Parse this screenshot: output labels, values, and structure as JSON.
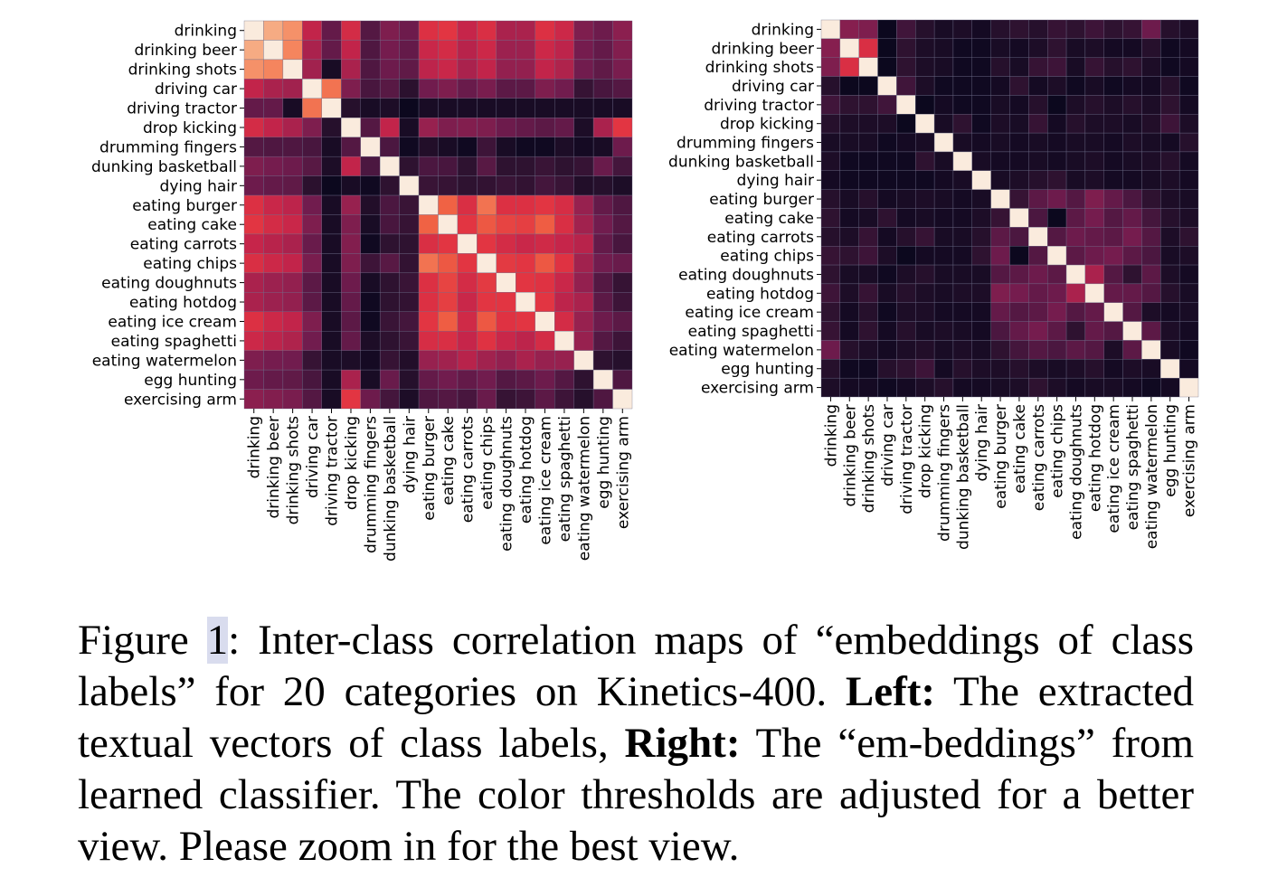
{
  "chart_data": [
    {
      "type": "heatmap",
      "panel": "Left",
      "labels": [
        "drinking",
        "drinking beer",
        "drinking shots",
        "driving car",
        "driving tractor",
        "drop kicking",
        "drumming fingers",
        "dunking basketball",
        "dying hair",
        "eating burger",
        "eating cake",
        "eating carrots",
        "eating chips",
        "eating doughnuts",
        "eating hotdog",
        "eating ice cream",
        "eating spaghetti",
        "eating watermelon",
        "egg hunting",
        "exercising arm"
      ],
      "colormap": [
        "#03051a",
        "#2b112e",
        "#4c1740",
        "#721c4e",
        "#99214f",
        "#c4244a",
        "#e13342",
        "#f06043",
        "#f58860",
        "#f6aa82",
        "#f8c7a8",
        "#faebdd"
      ],
      "grid": true,
      "legend": "none",
      "values": [
        [
          1.0,
          0.82,
          0.75,
          0.45,
          0.24,
          0.5,
          0.2,
          0.3,
          0.26,
          0.53,
          0.55,
          0.46,
          0.52,
          0.4,
          0.4,
          0.53,
          0.48,
          0.3,
          0.26,
          0.33
        ],
        [
          0.82,
          1.0,
          0.72,
          0.4,
          0.24,
          0.45,
          0.19,
          0.28,
          0.24,
          0.47,
          0.5,
          0.43,
          0.48,
          0.37,
          0.37,
          0.48,
          0.44,
          0.28,
          0.24,
          0.31
        ],
        [
          0.75,
          0.72,
          1.0,
          0.38,
          0.05,
          0.4,
          0.19,
          0.26,
          0.23,
          0.44,
          0.47,
          0.4,
          0.45,
          0.35,
          0.35,
          0.45,
          0.41,
          0.27,
          0.23,
          0.29
        ],
        [
          0.45,
          0.4,
          0.38,
          1.0,
          0.68,
          0.3,
          0.17,
          0.21,
          0.09,
          0.27,
          0.3,
          0.25,
          0.29,
          0.22,
          0.22,
          0.3,
          0.27,
          0.12,
          0.17,
          0.2
        ],
        [
          0.24,
          0.24,
          0.05,
          0.68,
          1.0,
          0.08,
          0.05,
          0.06,
          0.02,
          0.05,
          0.05,
          0.05,
          0.05,
          0.05,
          0.05,
          0.05,
          0.05,
          0.05,
          0.05,
          0.05
        ],
        [
          0.5,
          0.45,
          0.4,
          0.3,
          0.08,
          1.0,
          0.2,
          0.45,
          0.05,
          0.36,
          0.3,
          0.31,
          0.3,
          0.26,
          0.24,
          0.22,
          0.24,
          0.06,
          0.4,
          0.55
        ],
        [
          0.2,
          0.19,
          0.19,
          0.17,
          0.05,
          0.2,
          1.0,
          0.18,
          0.03,
          0.07,
          0.05,
          0.03,
          0.14,
          0.05,
          0.03,
          0.03,
          0.06,
          0.04,
          0.05,
          0.26
        ],
        [
          0.3,
          0.28,
          0.26,
          0.21,
          0.06,
          0.45,
          0.18,
          1.0,
          0.1,
          0.18,
          0.17,
          0.1,
          0.21,
          0.1,
          0.1,
          0.13,
          0.1,
          0.12,
          0.25,
          0.16
        ],
        [
          0.26,
          0.24,
          0.23,
          0.09,
          0.02,
          0.05,
          0.03,
          0.1,
          1.0,
          0.13,
          0.12,
          0.1,
          0.11,
          0.13,
          0.11,
          0.16,
          0.13,
          0.07,
          0.08,
          0.06
        ],
        [
          0.53,
          0.47,
          0.44,
          0.27,
          0.05,
          0.36,
          0.07,
          0.18,
          0.13,
          1.0,
          0.64,
          0.52,
          0.68,
          0.53,
          0.53,
          0.55,
          0.51,
          0.36,
          0.24,
          0.19
        ],
        [
          0.55,
          0.5,
          0.47,
          0.3,
          0.05,
          0.3,
          0.05,
          0.17,
          0.12,
          0.64,
          1.0,
          0.55,
          0.62,
          0.58,
          0.57,
          0.63,
          0.52,
          0.38,
          0.27,
          0.2
        ],
        [
          0.46,
          0.43,
          0.4,
          0.25,
          0.05,
          0.31,
          0.03,
          0.1,
          0.1,
          0.52,
          0.55,
          1.0,
          0.55,
          0.5,
          0.47,
          0.49,
          0.46,
          0.43,
          0.24,
          0.17
        ],
        [
          0.52,
          0.48,
          0.45,
          0.29,
          0.05,
          0.3,
          0.14,
          0.21,
          0.11,
          0.68,
          0.62,
          0.55,
          1.0,
          0.56,
          0.55,
          0.62,
          0.54,
          0.38,
          0.27,
          0.25
        ],
        [
          0.4,
          0.37,
          0.35,
          0.22,
          0.05,
          0.26,
          0.05,
          0.1,
          0.13,
          0.53,
          0.58,
          0.5,
          0.56,
          1.0,
          0.55,
          0.54,
          0.47,
          0.35,
          0.2,
          0.12
        ],
        [
          0.4,
          0.37,
          0.35,
          0.22,
          0.05,
          0.24,
          0.03,
          0.1,
          0.11,
          0.53,
          0.57,
          0.47,
          0.55,
          0.55,
          1.0,
          0.55,
          0.44,
          0.4,
          0.22,
          0.14
        ],
        [
          0.53,
          0.48,
          0.45,
          0.3,
          0.05,
          0.22,
          0.03,
          0.13,
          0.16,
          0.55,
          0.63,
          0.49,
          0.62,
          0.54,
          0.55,
          1.0,
          0.5,
          0.36,
          0.26,
          0.22
        ],
        [
          0.48,
          0.44,
          0.41,
          0.27,
          0.05,
          0.24,
          0.06,
          0.1,
          0.13,
          0.51,
          0.52,
          0.46,
          0.54,
          0.47,
          0.44,
          0.5,
          1.0,
          0.36,
          0.2,
          0.14
        ],
        [
          0.3,
          0.28,
          0.27,
          0.12,
          0.05,
          0.06,
          0.04,
          0.12,
          0.07,
          0.36,
          0.38,
          0.43,
          0.38,
          0.35,
          0.4,
          0.36,
          0.36,
          1.0,
          0.1,
          0.08
        ],
        [
          0.26,
          0.24,
          0.23,
          0.17,
          0.05,
          0.4,
          0.05,
          0.25,
          0.08,
          0.24,
          0.27,
          0.24,
          0.27,
          0.2,
          0.22,
          0.26,
          0.2,
          0.1,
          1.0,
          0.19
        ],
        [
          0.33,
          0.31,
          0.29,
          0.2,
          0.05,
          0.55,
          0.26,
          0.16,
          0.06,
          0.19,
          0.2,
          0.17,
          0.25,
          0.12,
          0.14,
          0.22,
          0.14,
          0.08,
          0.19,
          1.0
        ]
      ]
    },
    {
      "type": "heatmap",
      "panel": "Right",
      "labels": [
        "drinking",
        "drinking beer",
        "drinking shots",
        "driving car",
        "driving tractor",
        "drop kicking",
        "drumming fingers",
        "dunking basketball",
        "dying hair",
        "eating burger",
        "eating cake",
        "eating carrots",
        "eating chips",
        "eating doughnuts",
        "eating hotdog",
        "eating ice cream",
        "eating spaghetti",
        "eating watermelon",
        "egg hunting",
        "exercising arm"
      ],
      "colormap": [
        "#03051a",
        "#2b112e",
        "#4c1740",
        "#721c4e",
        "#99214f",
        "#c4244a",
        "#e13342",
        "#f06043",
        "#f58860",
        "#f6aa82",
        "#f8c7a8",
        "#faebdd"
      ],
      "grid": true,
      "legend": "none",
      "values": [
        [
          1.0,
          0.32,
          0.3,
          0.02,
          0.15,
          0.08,
          0.05,
          0.06,
          0.04,
          0.08,
          0.1,
          0.08,
          0.12,
          0.1,
          0.14,
          0.1,
          0.12,
          0.26,
          0.08,
          0.06
        ],
        [
          0.32,
          1.0,
          0.52,
          0.02,
          0.1,
          0.06,
          0.05,
          0.03,
          0.03,
          0.05,
          0.04,
          0.06,
          0.1,
          0.05,
          0.06,
          0.04,
          0.04,
          0.08,
          0.03,
          0.04
        ],
        [
          0.3,
          0.52,
          1.0,
          0.02,
          0.1,
          0.06,
          0.05,
          0.03,
          0.03,
          0.08,
          0.05,
          0.12,
          0.14,
          0.05,
          0.12,
          0.08,
          0.1,
          0.06,
          0.03,
          0.04
        ],
        [
          0.08,
          0.02,
          0.02,
          1.0,
          0.15,
          0.06,
          0.03,
          0.03,
          0.03,
          0.04,
          0.1,
          0.04,
          0.06,
          0.03,
          0.05,
          0.03,
          0.04,
          0.04,
          0.08,
          0.03
        ],
        [
          0.15,
          0.1,
          0.1,
          0.15,
          1.0,
          0.02,
          0.04,
          0.03,
          0.03,
          0.05,
          0.04,
          0.08,
          0.02,
          0.06,
          0.08,
          0.06,
          0.08,
          0.06,
          0.1,
          0.04
        ],
        [
          0.08,
          0.06,
          0.06,
          0.06,
          0.02,
          1.0,
          0.05,
          0.1,
          0.03,
          0.06,
          0.05,
          0.12,
          0.04,
          0.08,
          0.06,
          0.06,
          0.05,
          0.07,
          0.14,
          0.06
        ],
        [
          0.05,
          0.05,
          0.05,
          0.03,
          0.04,
          0.05,
          1.0,
          0.05,
          0.04,
          0.05,
          0.04,
          0.05,
          0.04,
          0.05,
          0.05,
          0.04,
          0.06,
          0.05,
          0.04,
          0.08
        ],
        [
          0.06,
          0.03,
          0.03,
          0.03,
          0.03,
          0.1,
          0.05,
          1.0,
          0.05,
          0.04,
          0.04,
          0.05,
          0.04,
          0.05,
          0.06,
          0.04,
          0.05,
          0.06,
          0.08,
          0.04
        ],
        [
          0.04,
          0.03,
          0.03,
          0.03,
          0.03,
          0.03,
          0.04,
          0.05,
          1.0,
          0.05,
          0.06,
          0.08,
          0.1,
          0.05,
          0.06,
          0.04,
          0.04,
          0.05,
          0.06,
          0.04
        ],
        [
          0.08,
          0.05,
          0.08,
          0.04,
          0.05,
          0.06,
          0.05,
          0.04,
          0.05,
          1.0,
          0.12,
          0.22,
          0.26,
          0.2,
          0.3,
          0.24,
          0.18,
          0.1,
          0.06,
          0.05
        ],
        [
          0.1,
          0.04,
          0.05,
          0.1,
          0.04,
          0.05,
          0.04,
          0.04,
          0.06,
          0.12,
          1.0,
          0.18,
          0.02,
          0.22,
          0.28,
          0.2,
          0.24,
          0.16,
          0.08,
          0.06
        ],
        [
          0.08,
          0.06,
          0.12,
          0.04,
          0.08,
          0.12,
          0.05,
          0.05,
          0.08,
          0.22,
          0.18,
          1.0,
          0.2,
          0.26,
          0.24,
          0.22,
          0.28,
          0.2,
          0.06,
          0.1
        ],
        [
          0.12,
          0.1,
          0.14,
          0.06,
          0.02,
          0.04,
          0.04,
          0.04,
          0.1,
          0.26,
          0.02,
          0.2,
          1.0,
          0.22,
          0.26,
          0.28,
          0.22,
          0.18,
          0.05,
          0.06
        ],
        [
          0.1,
          0.05,
          0.05,
          0.03,
          0.06,
          0.08,
          0.05,
          0.05,
          0.05,
          0.2,
          0.22,
          0.26,
          0.22,
          1.0,
          0.4,
          0.2,
          0.1,
          0.22,
          0.06,
          0.04
        ],
        [
          0.14,
          0.06,
          0.12,
          0.05,
          0.08,
          0.06,
          0.05,
          0.06,
          0.06,
          0.3,
          0.28,
          0.24,
          0.26,
          0.4,
          1.0,
          0.24,
          0.24,
          0.2,
          0.08,
          0.05
        ],
        [
          0.1,
          0.04,
          0.08,
          0.03,
          0.06,
          0.06,
          0.04,
          0.04,
          0.04,
          0.24,
          0.2,
          0.22,
          0.28,
          0.2,
          0.24,
          1.0,
          0.2,
          0.06,
          0.04,
          0.05
        ],
        [
          0.12,
          0.04,
          0.1,
          0.04,
          0.08,
          0.05,
          0.06,
          0.05,
          0.04,
          0.18,
          0.24,
          0.28,
          0.22,
          0.1,
          0.24,
          0.2,
          1.0,
          0.22,
          0.06,
          0.04
        ],
        [
          0.26,
          0.08,
          0.06,
          0.04,
          0.06,
          0.07,
          0.05,
          0.06,
          0.05,
          0.1,
          0.16,
          0.2,
          0.18,
          0.22,
          0.2,
          0.06,
          0.22,
          1.0,
          0.05,
          0.03
        ],
        [
          0.08,
          0.03,
          0.03,
          0.08,
          0.1,
          0.14,
          0.04,
          0.08,
          0.06,
          0.06,
          0.08,
          0.06,
          0.05,
          0.06,
          0.08,
          0.04,
          0.06,
          0.05,
          1.0,
          0.04
        ],
        [
          0.06,
          0.04,
          0.04,
          0.03,
          0.04,
          0.06,
          0.08,
          0.04,
          0.04,
          0.05,
          0.06,
          0.1,
          0.06,
          0.04,
          0.05,
          0.05,
          0.04,
          0.03,
          0.04,
          1.0
        ]
      ]
    }
  ],
  "caption": {
    "figure_word": "Figure ",
    "figure_number": "1",
    "text_1": ": Inter-class correlation maps of “embeddings of class labels” for 20 categories on Kinetics-400. ",
    "left_label": "Left:",
    "text_2": " The extracted textual vectors of class labels, ",
    "right_label": "Right:",
    "text_3": " The “em-beddings” from learned classifier. The color thresholds are adjusted for a better view. Please zoom in for the best view."
  }
}
